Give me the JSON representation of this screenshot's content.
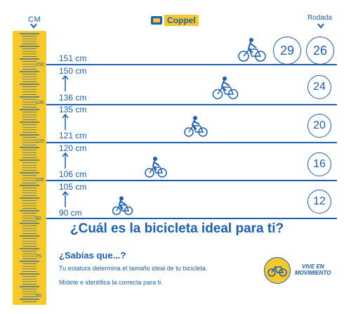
{
  "ruler": {
    "unit_label": "CM",
    "tick_labels": [
      "150",
      "135",
      "120",
      "105",
      "90",
      "75",
      "60"
    ]
  },
  "brand": {
    "name": "Coppel"
  },
  "rodada": {
    "label": "Rodada"
  },
  "ranges": [
    {
      "top": "151  cm",
      "bottom": ""
    },
    {
      "top": "150 cm",
      "bottom": "136  cm"
    },
    {
      "top": "135 cm",
      "bottom": "121  cm"
    },
    {
      "top": "120 cm",
      "bottom": "106  cm"
    },
    {
      "top": "105 cm",
      "bottom": "90  cm"
    }
  ],
  "sizes": [
    "29",
    "26",
    "24",
    "20",
    "16",
    "12"
  ],
  "headline": "¿Cuál es la bicicleta ideal para ti?",
  "info": {
    "title": "¿Sabías que...?",
    "line1": "Tu estatura determina el tamaño ideal de tu bicicleta.",
    "line2": "Mídete e identifica la correcta para ti."
  },
  "badge": {
    "line1": "VIVE EN",
    "line2": "MOVIMIENTO"
  },
  "colors": {
    "brand_blue": "#1a5fb4",
    "ruler_yellow": "#f6c82a"
  }
}
